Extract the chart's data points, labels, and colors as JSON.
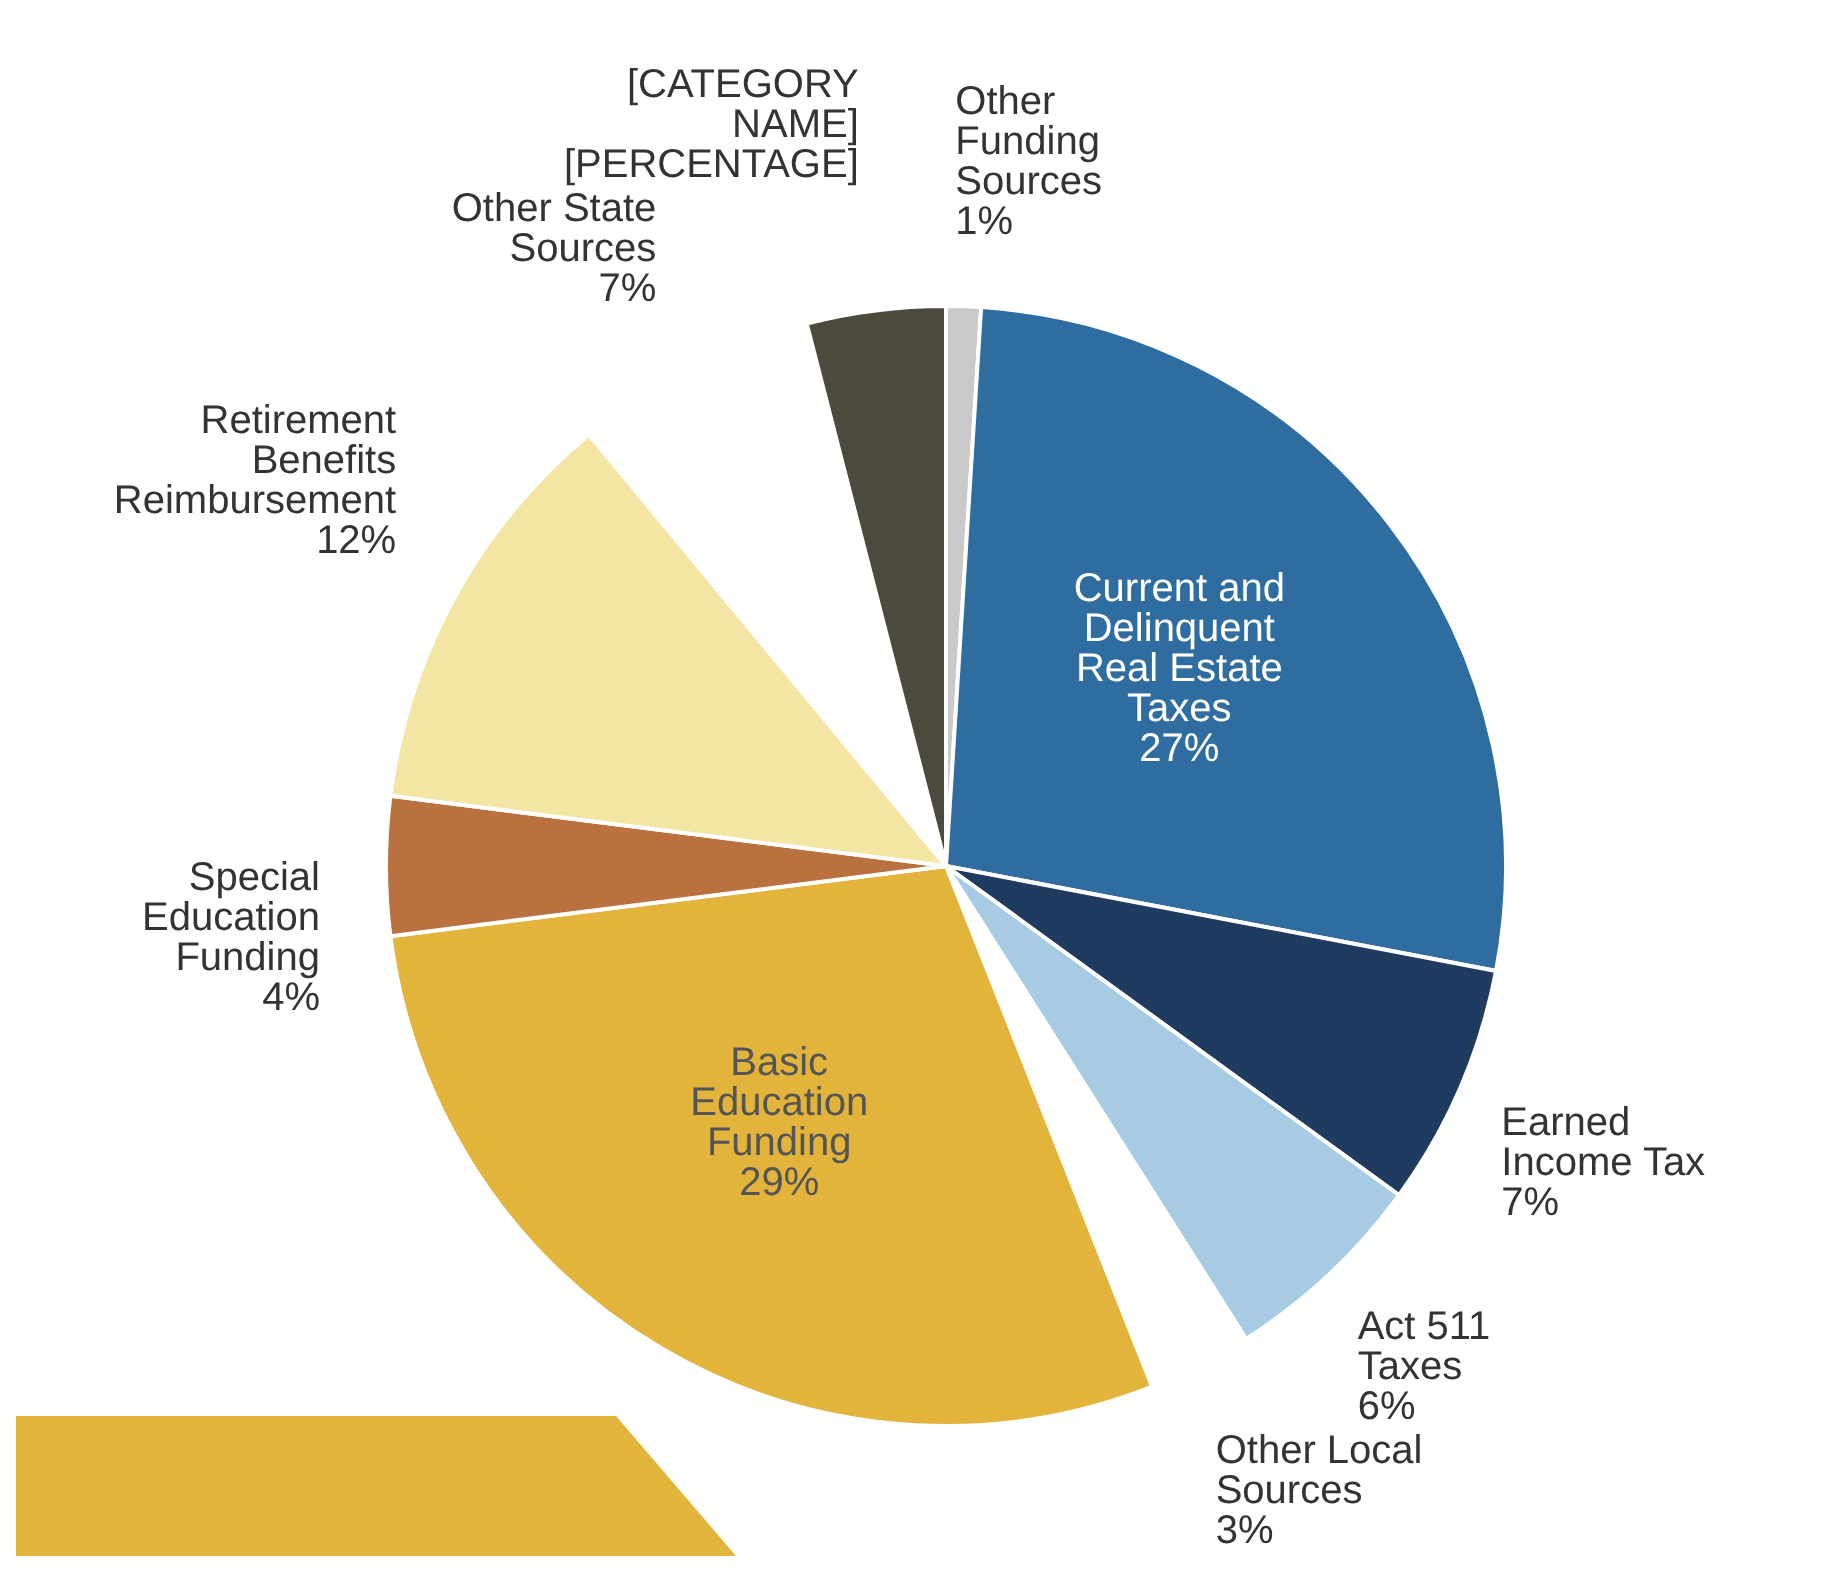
{
  "chart_data": {
    "type": "pie",
    "categories": [
      "Other Funding Sources",
      "Current and Delinquent Real Estate Taxes",
      "Earned Income Tax",
      "Act 511 Taxes",
      "Other Local Sources",
      "Basic Education Funding",
      "Special Education Funding",
      "Retirement Benefits Reimbursement",
      "Other State Sources",
      "[CATEGORY NAME]"
    ],
    "values": [
      1,
      27,
      7,
      6,
      3,
      29,
      4,
      12,
      7,
      4
    ],
    "colors": [
      "#c9c9c7",
      "#2f6c9f",
      "#1f3b5f",
      "#a7cbe2",
      "#ffffff",
      "#e2b43c",
      "#b8713f",
      "#f5e5a4",
      "#ffffff",
      "#4b4a3d"
    ],
    "value_labels": [
      "1%",
      "27%",
      "7%",
      "6%",
      "3%",
      "29%",
      "4%",
      "12%",
      "7%",
      "[PERCENTAGE]"
    ]
  }
}
